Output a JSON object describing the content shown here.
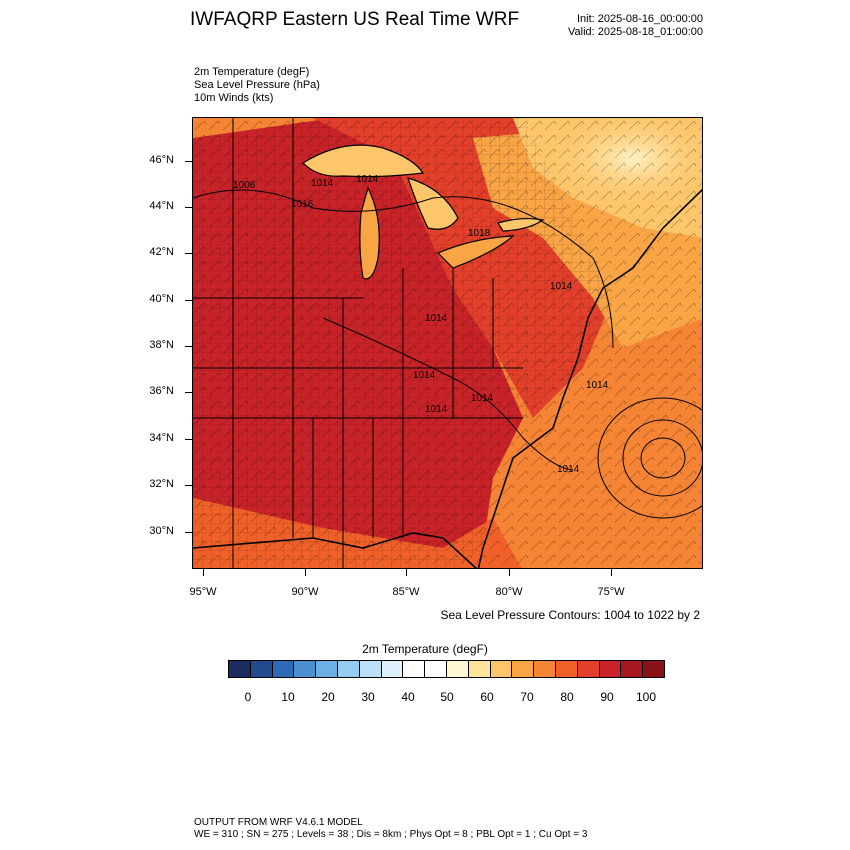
{
  "header": {
    "title": "IWFAQRP Eastern US Real Time WRF",
    "init": "Init: 2025-08-16_00:00:00",
    "valid": "Valid: 2025-08-18_01:00:00"
  },
  "fields": [
    "2m Temperature   (degF)",
    "Sea Level Pressure   (hPa)",
    "10m Winds   (kts)"
  ],
  "map": {
    "lat_labels": [
      "46°N",
      "44°N",
      "42°N",
      "40°N",
      "38°N",
      "36°N",
      "34°N",
      "32°N",
      "30°N"
    ],
    "lon_labels": [
      "95°W",
      "90°W",
      "85°W",
      "80°W",
      "75°W"
    ],
    "pressure_labels": [
      "1006",
      "1014",
      "1016",
      "1014",
      "1018",
      "1014",
      "1014",
      "1014",
      "1014",
      "1014",
      "1014",
      "1014"
    ],
    "colors": {
      "hot": "#c8201f",
      "warm": "#e8501e",
      "mild": "#f6913b",
      "cool": "#fdc46a",
      "pale": "#fff2c4",
      "ocean": "#f57f2d"
    }
  },
  "contour_note": "Sea Level Pressure Contours: 1004 to 1022 by 2",
  "colorbar": {
    "title": "2m Temperature  (degF)",
    "tick_labels": [
      "0",
      "10",
      "20",
      "30",
      "40",
      "50",
      "60",
      "70",
      "80",
      "90",
      "100"
    ],
    "colors": [
      "#1b2d5f",
      "#224a8e",
      "#2d6bb6",
      "#4a90d0",
      "#6cb0e3",
      "#95cdf0",
      "#b9e0f6",
      "#ddf0fb",
      "#ffffff",
      "#ffffff",
      "#fff6d4",
      "#ffe39a",
      "#fdc66a",
      "#f9a546",
      "#f58434",
      "#ef6129",
      "#e2402a",
      "#c9232a",
      "#a8161f",
      "#8a1219"
    ]
  },
  "footer": {
    "line1": "OUTPUT FROM WRF V4.6.1 MODEL",
    "line2": "WE = 310 ; SN = 275 ; Levels = 38 ; Dis = 8km ; Phys Opt = 8 ; PBL Opt = 1 ; Cu Opt = 3"
  }
}
